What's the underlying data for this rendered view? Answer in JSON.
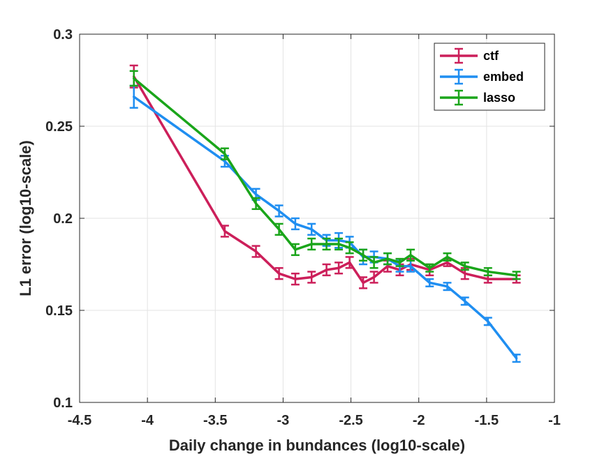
{
  "chart_data": {
    "type": "line",
    "title": "",
    "xlabel": "Daily change in bundances (log10-scale)",
    "ylabel": "L1 error (log10-scale)",
    "xlim": [
      -4.5,
      -1
    ],
    "ylim": [
      0.1,
      0.3
    ],
    "xticks": [
      -4.5,
      -4,
      -3.5,
      -3,
      -2.5,
      -2,
      -1.5,
      -1
    ],
    "yticks": [
      0.1,
      0.15,
      0.2,
      0.25,
      0.3
    ],
    "xtick_labels": [
      "-4.5",
      "-4",
      "-3.5",
      "-3",
      "-2.5",
      "-2",
      "-1.5",
      "-1"
    ],
    "ytick_labels": [
      "0.1",
      "0.15",
      "0.2",
      "0.25",
      "0.3"
    ],
    "grid": true,
    "error_bars": true,
    "legend_position": "top-right",
    "series": [
      {
        "name": "ctf",
        "color": "#cc1f5a",
        "x": [
          -4.1,
          -3.43,
          -3.2,
          -3.03,
          -2.91,
          -2.79,
          -2.68,
          -2.59,
          -2.51,
          -2.41,
          -2.33,
          -2.23,
          -2.14,
          -2.06,
          -1.92,
          -1.79,
          -1.66,
          -1.49,
          -1.28
        ],
        "y": [
          0.277,
          0.193,
          0.182,
          0.17,
          0.167,
          0.168,
          0.172,
          0.173,
          0.176,
          0.165,
          0.168,
          0.174,
          0.172,
          0.175,
          0.172,
          0.176,
          0.17,
          0.167,
          0.167
        ],
        "err": [
          0.006,
          0.003,
          0.003,
          0.003,
          0.003,
          0.003,
          0.003,
          0.003,
          0.003,
          0.003,
          0.003,
          0.003,
          0.003,
          0.003,
          0.003,
          0.002,
          0.003,
          0.002,
          0.002
        ]
      },
      {
        "name": "embed",
        "color": "#1f8ef1",
        "x": [
          -4.1,
          -3.43,
          -3.2,
          -3.03,
          -2.91,
          -2.79,
          -2.68,
          -2.59,
          -2.51,
          -2.41,
          -2.33,
          -2.23,
          -2.14,
          -2.06,
          -1.92,
          -1.79,
          -1.66,
          -1.49,
          -1.28
        ],
        "y": [
          0.266,
          0.231,
          0.213,
          0.204,
          0.197,
          0.194,
          0.188,
          0.188,
          0.187,
          0.179,
          0.179,
          0.178,
          0.174,
          0.174,
          0.165,
          0.163,
          0.155,
          0.144,
          0.124
        ],
        "err": [
          0.006,
          0.003,
          0.003,
          0.003,
          0.003,
          0.003,
          0.003,
          0.004,
          0.003,
          0.004,
          0.003,
          0.003,
          0.003,
          0.003,
          0.002,
          0.002,
          0.002,
          0.002,
          0.002
        ]
      },
      {
        "name": "lasso",
        "color": "#1aa51a",
        "x": [
          -4.1,
          -3.43,
          -3.2,
          -3.03,
          -2.91,
          -2.79,
          -2.68,
          -2.59,
          -2.51,
          -2.41,
          -2.33,
          -2.23,
          -2.14,
          -2.06,
          -1.92,
          -1.79,
          -1.66,
          -1.49,
          -1.28
        ],
        "y": [
          0.276,
          0.235,
          0.208,
          0.194,
          0.183,
          0.186,
          0.186,
          0.186,
          0.184,
          0.18,
          0.176,
          0.178,
          0.176,
          0.18,
          0.173,
          0.179,
          0.174,
          0.171,
          0.169
        ],
        "err": [
          0.004,
          0.003,
          0.003,
          0.003,
          0.003,
          0.003,
          0.003,
          0.003,
          0.003,
          0.003,
          0.003,
          0.003,
          0.002,
          0.003,
          0.002,
          0.002,
          0.002,
          0.002,
          0.002
        ]
      }
    ]
  }
}
